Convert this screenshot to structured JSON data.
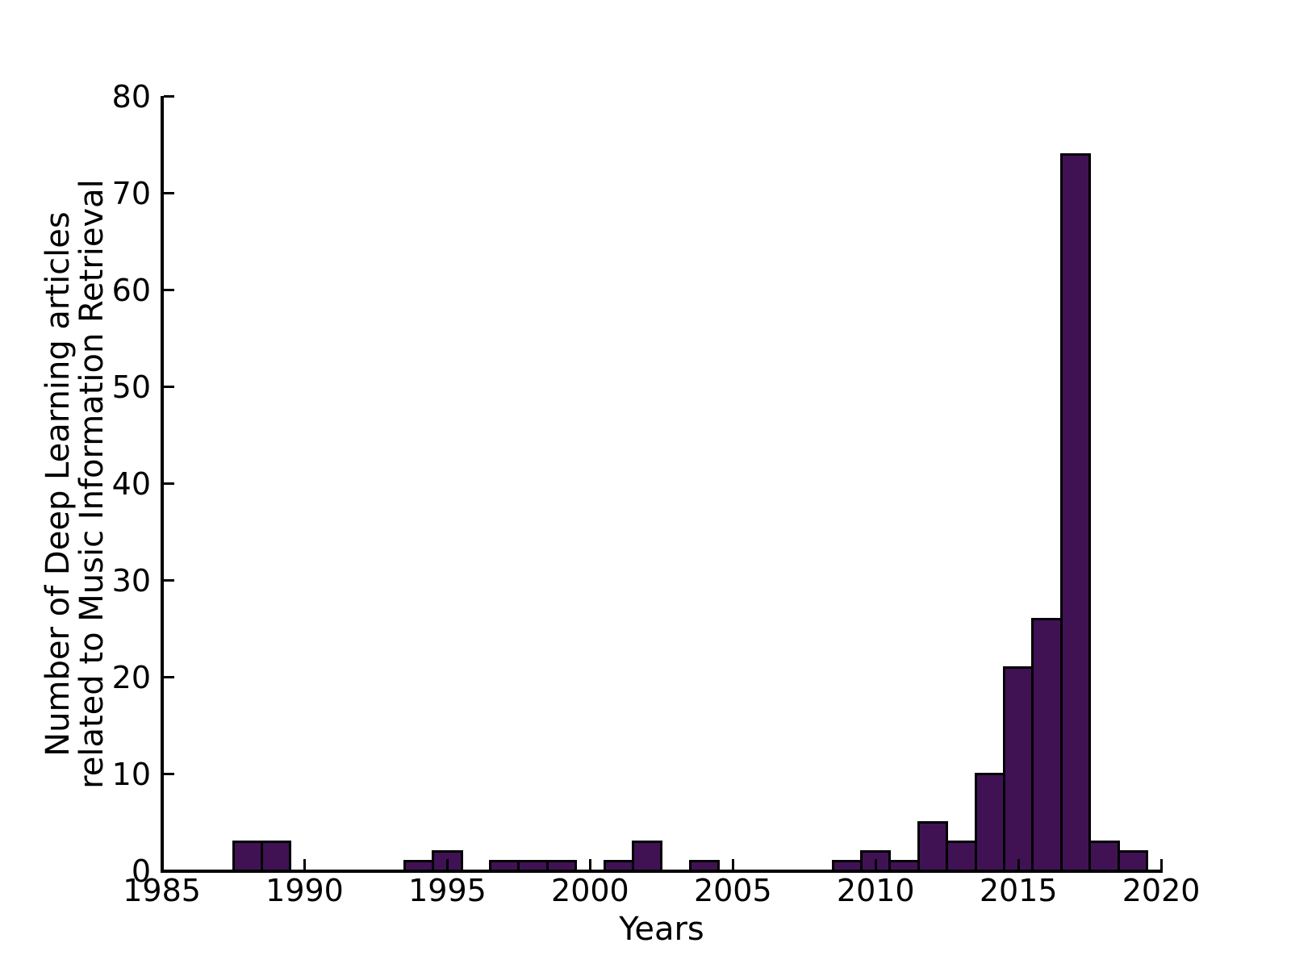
{
  "figure": {
    "background": "#ffffff",
    "xlabel": "Years",
    "ylabel_line1": "Number of Deep Learning articles",
    "ylabel_line2": "related to Music Information Retrieval"
  },
  "chart_data": {
    "type": "bar",
    "subtype": "histogram",
    "title": "",
    "xlabel": "Years",
    "ylabel": "Number of Deep Learning articles related to Music Information Retrieval",
    "xlim": [
      1985,
      2020
    ],
    "ylim": [
      0,
      80
    ],
    "xticks": [
      1985,
      1990,
      1995,
      2000,
      2005,
      2010,
      2015,
      2020
    ],
    "yticks": [
      0,
      10,
      20,
      30,
      40,
      50,
      60,
      70,
      80
    ],
    "bin_width_years": 1,
    "grid": false,
    "legend_position": "none",
    "bar_color": "#401254",
    "bar_edge_color": "#000000",
    "axis_color": "#000000",
    "bars": [
      {
        "year": 1988,
        "count": 3
      },
      {
        "year": 1989,
        "count": 3
      },
      {
        "year": 1994,
        "count": 1
      },
      {
        "year": 1995,
        "count": 2
      },
      {
        "year": 1997,
        "count": 1
      },
      {
        "year": 1998,
        "count": 1
      },
      {
        "year": 1999,
        "count": 1
      },
      {
        "year": 2001,
        "count": 1
      },
      {
        "year": 2002,
        "count": 3
      },
      {
        "year": 2004,
        "count": 1
      },
      {
        "year": 2009,
        "count": 1
      },
      {
        "year": 2010,
        "count": 2
      },
      {
        "year": 2011,
        "count": 1
      },
      {
        "year": 2012,
        "count": 5
      },
      {
        "year": 2013,
        "count": 3
      },
      {
        "year": 2014,
        "count": 10
      },
      {
        "year": 2015,
        "count": 21
      },
      {
        "year": 2016,
        "count": 26
      },
      {
        "year": 2017,
        "count": 74
      },
      {
        "year": 2018,
        "count": 3
      },
      {
        "year": 2019,
        "count": 2
      }
    ]
  }
}
